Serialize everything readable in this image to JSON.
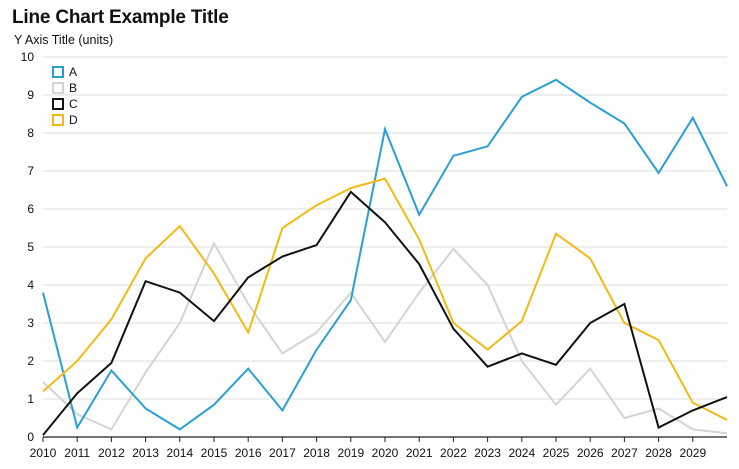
{
  "chart_data": {
    "type": "line",
    "title": "Line Chart Example Title",
    "ylabel": "Y Axis Title (units)",
    "xlabel": "",
    "ylim": [
      0,
      10
    ],
    "yticks": [
      0,
      1,
      2,
      3,
      4,
      5,
      6,
      7,
      8,
      9,
      10
    ],
    "x": [
      2010,
      2011,
      2012,
      2013,
      2014,
      2015,
      2016,
      2017,
      2018,
      2019,
      2020,
      2021,
      2022,
      2023,
      2024,
      2025,
      2026,
      2027,
      2028,
      2029,
      2030
    ],
    "xtick_labels": [
      "2010",
      "2011",
      "2012",
      "2013",
      "2014",
      "2015",
      "2016",
      "2017",
      "2018",
      "2019",
      "2020",
      "2021",
      "2022",
      "2023",
      "2024",
      "2025",
      "2026",
      "2027",
      "2028",
      "2029"
    ],
    "grid": "horizontal",
    "legend_position": "top-left",
    "series": [
      {
        "name": "A",
        "color": "#2a9fd6",
        "values": [
          3.8,
          0.25,
          1.75,
          0.75,
          0.2,
          0.85,
          1.8,
          0.7,
          2.3,
          3.6,
          8.1,
          5.85,
          7.4,
          7.65,
          8.95,
          9.4,
          8.8,
          8.25,
          6.95,
          8.4,
          6.6
        ]
      },
      {
        "name": "B",
        "color": "#d4d4d4",
        "values": [
          1.45,
          0.6,
          0.2,
          1.7,
          3.0,
          5.1,
          3.5,
          2.2,
          2.75,
          3.8,
          2.5,
          3.8,
          4.95,
          4.0,
          2.0,
          0.85,
          1.8,
          0.5,
          0.75,
          0.2,
          0.1
        ]
      },
      {
        "name": "C",
        "color": "#111111",
        "values": [
          0.05,
          1.15,
          1.95,
          4.1,
          3.8,
          3.05,
          4.2,
          4.75,
          5.05,
          6.45,
          5.65,
          4.55,
          2.85,
          1.85,
          2.2,
          1.9,
          3.0,
          3.5,
          0.25,
          0.7,
          1.05
        ]
      },
      {
        "name": "D",
        "color": "#f5b915",
        "values": [
          1.2,
          2.0,
          3.1,
          4.7,
          5.55,
          4.3,
          2.75,
          5.5,
          6.1,
          6.55,
          6.8,
          5.2,
          3.0,
          2.3,
          3.05,
          5.35,
          4.7,
          3.0,
          2.55,
          0.9,
          0.45
        ]
      }
    ]
  }
}
